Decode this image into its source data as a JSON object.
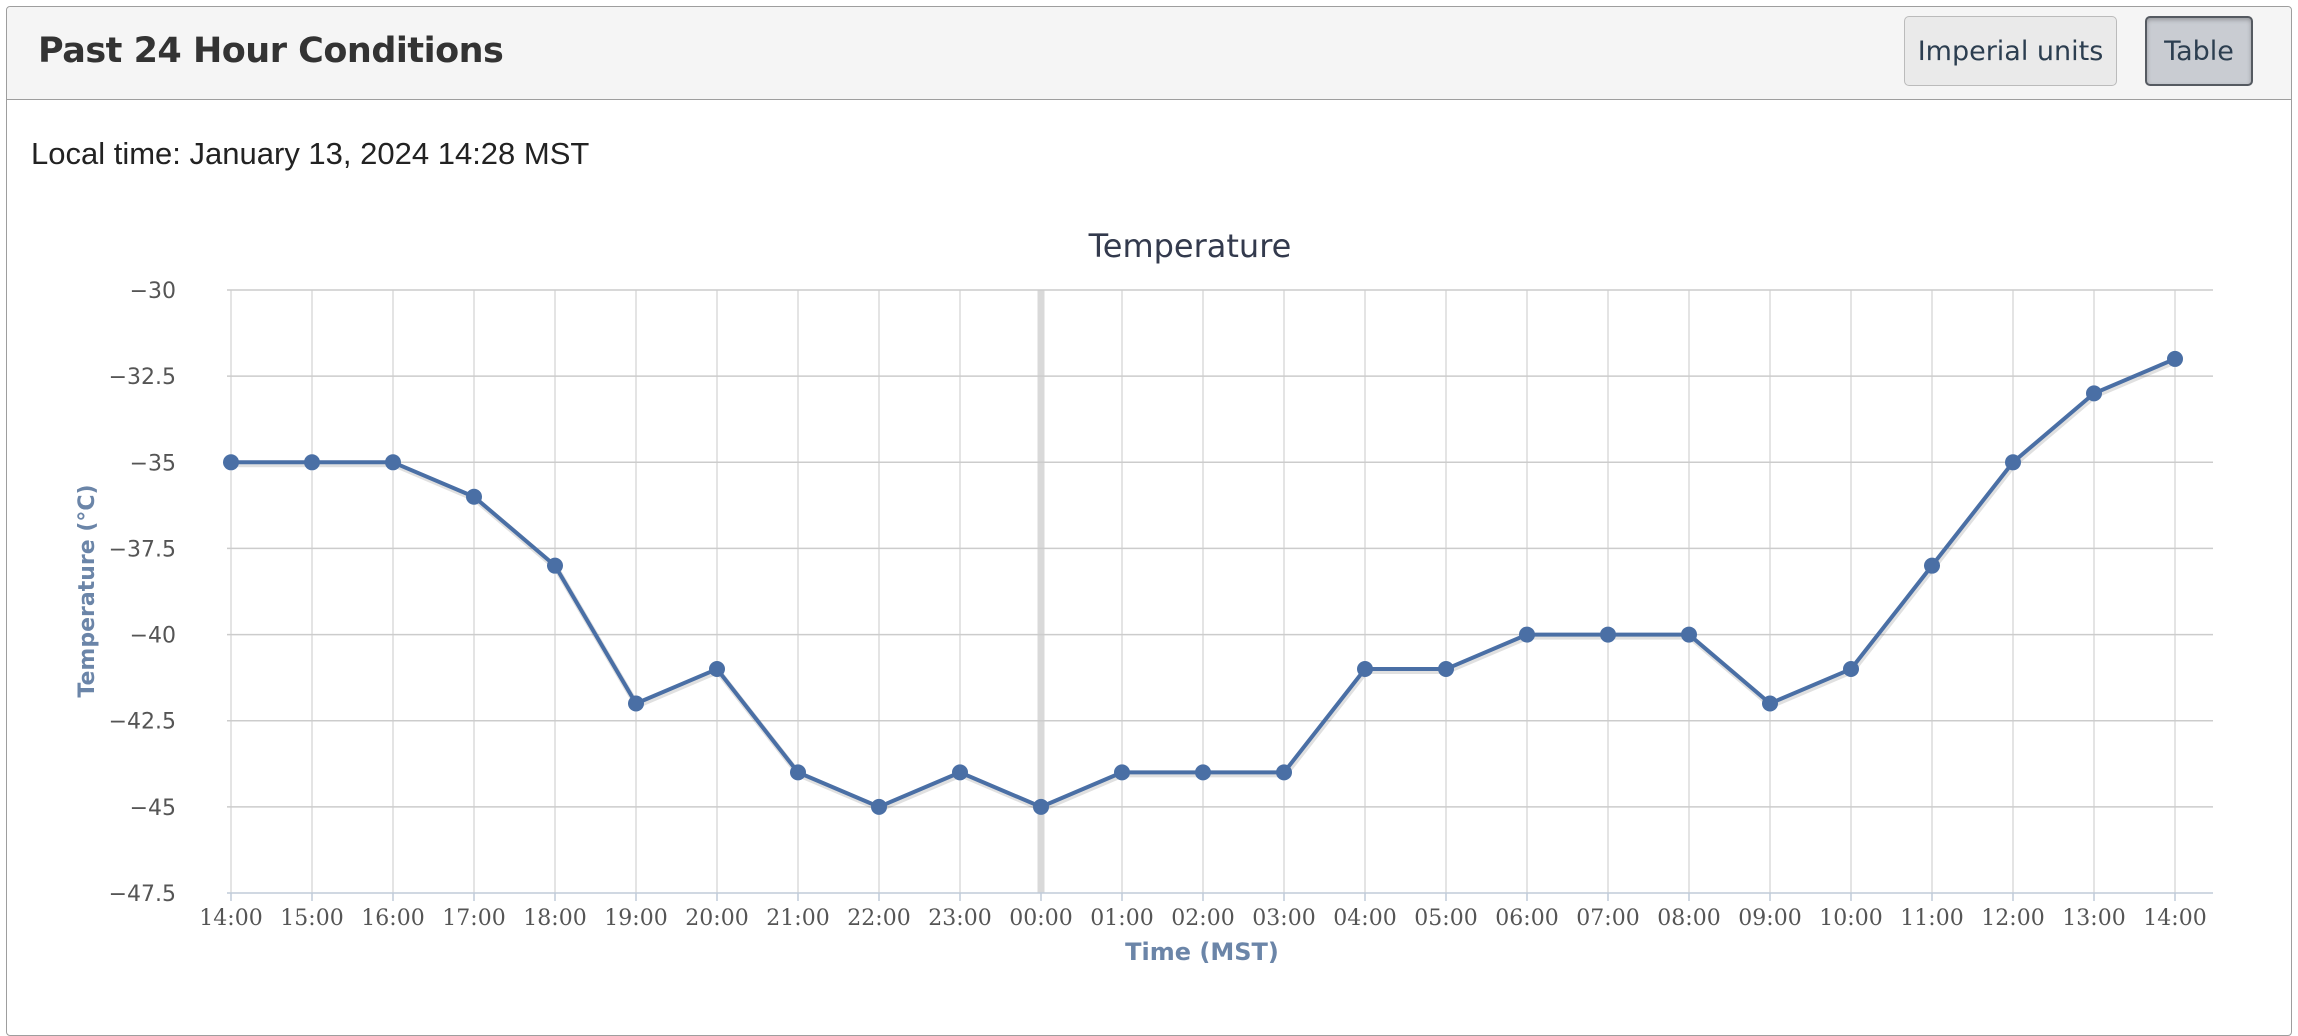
{
  "panel": {
    "title": "Past 24 Hour Conditions",
    "buttons": {
      "imperial_label": "Imperial units",
      "table_label": "Table"
    }
  },
  "local_time": {
    "label": "Local time:",
    "value": "January 13, 2024 14:28 MST"
  },
  "colors": {
    "series": "#4a6fa5",
    "axis_title": "#6b85a8",
    "grid": "#cccccc",
    "tick_label": "#555555",
    "midnight_band": "#d9d9d9"
  },
  "chart_data": {
    "type": "line",
    "title": "Temperature",
    "xlabel": "Time (MST)",
    "ylabel": "Temperature (°C)",
    "categories": [
      "14:00",
      "15:00",
      "16:00",
      "17:00",
      "18:00",
      "19:00",
      "20:00",
      "21:00",
      "22:00",
      "23:00",
      "00:00",
      "01:00",
      "02:00",
      "03:00",
      "04:00",
      "05:00",
      "06:00",
      "07:00",
      "08:00",
      "09:00",
      "10:00",
      "11:00",
      "12:00",
      "13:00",
      "14:00"
    ],
    "yticks": [
      -30,
      -32.5,
      -35,
      -37.5,
      -40,
      -42.5,
      -45,
      -47.5
    ],
    "ytick_labels": [
      "−30",
      "−32.5",
      "−35",
      "−37.5",
      "−40",
      "−42.5",
      "−45",
      "−47.5"
    ],
    "ylim": [
      -47.5,
      -30
    ],
    "grid": true,
    "highlight_category": "00:00",
    "series": [
      {
        "values": [
          -35,
          -35,
          -35,
          -36,
          -38,
          -42,
          -41,
          -44,
          -45,
          -44,
          -45,
          -44,
          -44,
          -44,
          -41,
          -41,
          -40,
          -40,
          -40,
          -42,
          -41,
          -38,
          -35,
          -33,
          -32
        ]
      }
    ]
  }
}
